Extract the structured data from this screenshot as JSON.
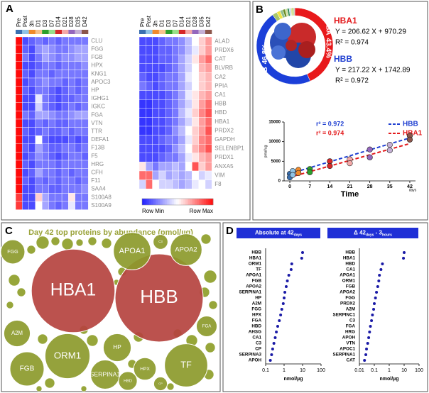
{
  "panel_labels": [
    "A",
    "B",
    "C",
    "D"
  ],
  "chart_data": [
    {
      "type": "heatmap",
      "columns": [
        "Pre",
        "Post",
        "3h",
        "D1",
        "D3",
        "D7",
        "D14",
        "D21",
        "D28",
        "D35",
        "D42"
      ],
      "column_colors": [
        "#3a6fb0",
        "#8fc3e6",
        "#f08a2c",
        "#f7c28c",
        "#2ca02c",
        "#98df8a",
        "#d62728",
        "#f4a9a8",
        "#9467bd",
        "#c5b0d5",
        "#8c564b"
      ],
      "rows": [
        "CLU",
        "FGG",
        "FGB",
        "HPX",
        "KNG1",
        "APOC3",
        "HP",
        "IGHG1",
        "IGKC",
        "FGA",
        "VTN",
        "TTR",
        "DEFA1",
        "F13B",
        "F5",
        "HRG",
        "CFH",
        "F11",
        "SAA4",
        "S100A8",
        "S100A9"
      ],
      "zlim": [
        0,
        1
      ],
      "values": [
        [
          1,
          0.1,
          0.15,
          0.2,
          0.15,
          0.2,
          0.15,
          0.2,
          0.2,
          0.2,
          0.2
        ],
        [
          1,
          0.15,
          0.1,
          0.25,
          0.3,
          0.25,
          0.2,
          0.2,
          0.25,
          0.3,
          0.3
        ],
        [
          1,
          0.2,
          0.1,
          0.2,
          0.3,
          0.25,
          0.2,
          0.25,
          0.25,
          0.3,
          0.3
        ],
        [
          1,
          0.1,
          0.1,
          0.15,
          0.2,
          0.2,
          0.15,
          0.2,
          0.2,
          0.2,
          0.25
        ],
        [
          1,
          0.15,
          0.1,
          0.2,
          0.2,
          0.15,
          0.2,
          0.2,
          0.2,
          0.2,
          0.2
        ],
        [
          1,
          0.1,
          0.15,
          0.2,
          0.25,
          0.2,
          0.2,
          0.15,
          0.2,
          0.15,
          0.2
        ],
        [
          1,
          0.15,
          0.1,
          0.2,
          0.2,
          0.15,
          0.1,
          0.15,
          0.2,
          0.15,
          0.2
        ],
        [
          1,
          0.1,
          0.1,
          0.45,
          0.2,
          0.15,
          0.1,
          0.15,
          0.15,
          0.2,
          0.2
        ],
        [
          1,
          0.1,
          0.1,
          0.4,
          0.2,
          0.15,
          0.1,
          0.15,
          0.2,
          0.15,
          0.2
        ],
        [
          1,
          0.2,
          0.15,
          0.3,
          0.3,
          0.25,
          0.2,
          0.2,
          0.25,
          0.3,
          0.3
        ],
        [
          1,
          0.1,
          0.1,
          0.2,
          0.15,
          0.2,
          0.15,
          0.15,
          0.2,
          0.2,
          0.2
        ],
        [
          1,
          0.15,
          0.1,
          0.15,
          0.2,
          0.15,
          0.15,
          0.2,
          0.15,
          0.2,
          0.2
        ],
        [
          1,
          0.1,
          0.1,
          0.5,
          0.15,
          0.1,
          0.1,
          0.1,
          0.15,
          0.1,
          0.15
        ],
        [
          1,
          0.15,
          0.1,
          0.3,
          0.2,
          0.15,
          0.15,
          0.2,
          0.2,
          0.15,
          0.2
        ],
        [
          1,
          0.1,
          0.15,
          0.25,
          0.2,
          0.15,
          0.1,
          0.15,
          0.2,
          0.2,
          0.15
        ],
        [
          1,
          0.15,
          0.1,
          0.2,
          0.2,
          0.2,
          0.15,
          0.2,
          0.2,
          0.2,
          0.2
        ],
        [
          1,
          0.1,
          0.15,
          0.3,
          0.2,
          0.2,
          0.15,
          0.2,
          0.15,
          0.2,
          0.2
        ],
        [
          1,
          0.15,
          0.1,
          0.2,
          0.15,
          0.2,
          0.15,
          0.2,
          0.2,
          0.15,
          0.2
        ],
        [
          1,
          0.1,
          0.1,
          0.2,
          0.2,
          0.15,
          0.15,
          0.2,
          0.2,
          0.2,
          0.25
        ],
        [
          0.9,
          0.1,
          0.1,
          0.6,
          0.3,
          0.2,
          0.2,
          0.2,
          0.55,
          0.2,
          0.2
        ],
        [
          0.9,
          0.1,
          0.1,
          0.5,
          0.3,
          0.2,
          0.15,
          0.2,
          0.45,
          0.2,
          0.2
        ]
      ]
    },
    {
      "type": "heatmap",
      "columns": [
        "Pre",
        "Post",
        "3h",
        "D1",
        "D3",
        "D7",
        "D14",
        "D21",
        "D28",
        "D35",
        "D42"
      ],
      "column_colors": [
        "#3a6fb0",
        "#8fc3e6",
        "#f08a2c",
        "#f7c28c",
        "#2ca02c",
        "#98df8a",
        "#d62728",
        "#f4a9a8",
        "#9467bd",
        "#c5b0d5",
        "#8c564b"
      ],
      "rows": [
        "ALAD",
        "PRDX6",
        "CAT",
        "BLVRB",
        "CA2",
        "PPIA",
        "CA1",
        "HBB",
        "HBD",
        "HBA1",
        "PRDX2",
        "GAPDH",
        "SELENBP1",
        "PRDX1",
        "ANXA5",
        "VIM",
        "F8"
      ],
      "zlim": [
        0,
        1
      ],
      "colorbar_labels": [
        "Row Min",
        "Row Max"
      ],
      "values": [
        [
          0.1,
          0.1,
          0.1,
          0.15,
          0.2,
          0.2,
          0.25,
          0.35,
          0.5,
          0.6,
          0.7
        ],
        [
          0.1,
          0.1,
          0.1,
          0.15,
          0.15,
          0.2,
          0.25,
          0.35,
          0.45,
          0.6,
          0.7
        ],
        [
          0.1,
          0.1,
          0.1,
          0.15,
          0.15,
          0.2,
          0.3,
          0.4,
          0.55,
          0.7,
          0.8
        ],
        [
          0.1,
          0.1,
          0.1,
          0.1,
          0.15,
          0.2,
          0.3,
          0.4,
          0.5,
          0.65,
          0.7
        ],
        [
          0.15,
          0.1,
          0.1,
          0.15,
          0.2,
          0.2,
          0.3,
          0.45,
          0.5,
          0.6,
          0.65
        ],
        [
          0.2,
          0.15,
          0.1,
          0.15,
          0.2,
          0.2,
          0.3,
          0.4,
          0.5,
          0.6,
          0.65
        ],
        [
          0.1,
          0.1,
          0.1,
          0.1,
          0.15,
          0.2,
          0.3,
          0.45,
          0.55,
          0.65,
          0.7
        ],
        [
          0.05,
          0.05,
          0.1,
          0.1,
          0.15,
          0.2,
          0.3,
          0.4,
          0.55,
          0.7,
          0.8
        ],
        [
          0.05,
          0.05,
          0.1,
          0.1,
          0.15,
          0.2,
          0.35,
          0.45,
          0.6,
          0.75,
          0.85
        ],
        [
          0.05,
          0.05,
          0.1,
          0.1,
          0.15,
          0.2,
          0.3,
          0.4,
          0.55,
          0.7,
          0.8
        ],
        [
          0.05,
          0.05,
          0.1,
          0.1,
          0.15,
          0.25,
          0.35,
          0.5,
          0.6,
          0.7,
          0.85
        ],
        [
          0.1,
          0.1,
          0.1,
          0.15,
          0.2,
          0.2,
          0.3,
          0.45,
          0.6,
          0.75,
          0.8
        ],
        [
          0.1,
          0.1,
          0.1,
          0.1,
          0.15,
          0.25,
          0.35,
          0.5,
          0.65,
          0.75,
          0.85
        ],
        [
          0.1,
          0.1,
          0.1,
          0.15,
          0.2,
          0.2,
          0.3,
          0.45,
          0.55,
          0.65,
          0.7
        ],
        [
          0.55,
          0.3,
          0.2,
          0.3,
          0.3,
          0.35,
          0.3,
          0.5,
          0.85,
          0.6,
          0.7
        ],
        [
          0.8,
          0.8,
          0.3,
          0.4,
          0.3,
          0.35,
          0.3,
          0.35,
          0.5,
          0.4,
          0.45
        ],
        [
          0.4,
          0.8,
          0.5,
          0.4,
          0.4,
          0.35,
          0.3,
          0.35,
          0.45,
          0.5,
          0.4
        ]
      ]
    },
    {
      "type": "pie",
      "categories": [
        "HBA",
        "HBB",
        null,
        null,
        null,
        null,
        null,
        null,
        null,
        null,
        null,
        null
      ],
      "values": [
        43.4,
        46.8,
        2,
        1.5,
        1.2,
        1,
        0.9,
        0.8,
        0.7,
        0.6,
        0.6,
        0.5
      ],
      "value_labels": [
        "43.4%",
        "46.8%",
        null,
        null,
        null,
        null,
        null,
        null,
        null,
        null,
        null,
        null
      ],
      "colors": [
        "#e8191b",
        "#1b3fd9",
        "#a8c66c",
        "#f0e442",
        "#8fbf8f",
        "#6b8e23",
        "#cfe0a0",
        "#2e8b57",
        "#b8d8e8",
        "#e0e0a0",
        "#9acd32",
        "#c0c0c0"
      ],
      "annotations": [
        {
          "text": "HBA1",
          "color": "#e31a1c"
        },
        {
          "text": "Y = 206.62 X + 970.29",
          "color": "#000000"
        },
        {
          "text": "R² = 0.974",
          "color": "#000000"
        },
        {
          "text": "HBB",
          "color": "#1f3fd1"
        },
        {
          "text": "Y = 217.22 X + 1742.89",
          "color": "#000000"
        },
        {
          "text": "R² = 0.972",
          "color": "#000000"
        }
      ]
    },
    {
      "type": "scatter",
      "x": [
        0,
        1,
        3,
        7,
        14,
        21,
        28,
        35,
        42
      ],
      "point_colors": [
        "#3a6fb0",
        "#8fc3e6",
        "#f08a2c",
        "#2ca02c",
        "#d62728",
        "#f4a9a8",
        "#9467bd",
        "#c5b0d5",
        "#8c564b"
      ],
      "series": [
        {
          "name": "HBB",
          "color": "#1f3fd1",
          "values": [
            1800,
            2500,
            2800,
            3000,
            5000,
            5500,
            8000,
            9200,
            11500
          ]
        },
        {
          "name": "HBA1",
          "color": "#e31a1c",
          "values": [
            900,
            1500,
            2000,
            2200,
            3800,
            4500,
            6000,
            7800,
            10500
          ]
        }
      ],
      "xlim": [
        -2,
        44
      ],
      "ylim": [
        0,
        15000
      ],
      "xticks": [
        0,
        7,
        14,
        21,
        28,
        35,
        42
      ],
      "yticks": [
        0,
        5000,
        10000,
        15000
      ],
      "xlabel": "Time",
      "xunit": "days",
      "ylabel": "pmol/ug",
      "trendline": true,
      "annotations": [
        {
          "text": "r² = 0.972",
          "color": "#1f3fd1"
        },
        {
          "text": "r² = 0.974",
          "color": "#e31a1c"
        }
      ]
    },
    {
      "type": "bubble",
      "title": "Day 42 top proteins by abundance (pmol/µg)",
      "categories": [
        "HBB",
        "HBA1",
        "TF",
        "ORM1",
        "HP",
        "FGB",
        "A2M",
        "APOA1",
        "APOA2",
        "SERPINA1",
        "FGG",
        "C3",
        "HPX",
        "CP",
        "HBD",
        "FGA"
      ],
      "values": [
        10,
        9,
        2.4,
        2.6,
        1,
        1.5,
        0.9,
        1.8,
        1.3,
        1.1,
        0.75,
        0.28,
        0.65,
        0.24,
        0.45,
        0.55
      ],
      "colors": [
        "#b5433f",
        "#b5433f",
        "#8c9a2b",
        "#8c9a2b",
        "#8c9a2b",
        "#8c9a2b",
        "#8c9a2b",
        "#8c9a2b",
        "#8c9a2b",
        "#8c9a2b",
        "#8c9a2b",
        "#8c9a2b",
        "#8c9a2b",
        "#8c9a2b",
        "#8c9a2b",
        "#8c9a2b"
      ]
    },
    {
      "type": "dot",
      "title_parts": [
        "Absolute at 42",
        "days"
      ],
      "categories": [
        "HBB",
        "HBA1",
        "ORM1",
        "TF",
        "APOA1",
        "FGB",
        "APOA2",
        "SERPINA1",
        "HP",
        "A2M",
        "FGG",
        "HPX",
        "FGA",
        "HBD",
        "AHSG",
        "CA1",
        "C3",
        "CP",
        "SERPINA3",
        "APOH"
      ],
      "values": [
        10,
        9,
        2.6,
        2.4,
        1.8,
        1.5,
        1.3,
        1.1,
        1,
        0.9,
        0.75,
        0.65,
        0.55,
        0.45,
        0.38,
        0.33,
        0.28,
        0.24,
        0.21,
        0.18
      ],
      "log_x": true,
      "xlim": [
        0.1,
        100
      ],
      "xticks": [
        0.1,
        1,
        10,
        100
      ],
      "xlabel": "nmol/µg",
      "color": "#1a1aa6",
      "title_color": "#1f2fd6"
    },
    {
      "type": "dot",
      "title_parts": [
        "Δ 42",
        "days",
        " - 3",
        "hours"
      ],
      "categories": [
        "HBB",
        "HBA1",
        "HBD",
        "CA1",
        "APOA1",
        "ORM1",
        "FGB",
        "APOA2",
        "FGG",
        "PRDX2",
        "A2M",
        "SERPINC1",
        "C3",
        "FGA",
        "HRG",
        "APOH",
        "VTN",
        "APOC1",
        "SERPINA1",
        "CAT"
      ],
      "values": [
        10,
        9,
        0.35,
        0.28,
        0.22,
        0.2,
        0.17,
        0.14,
        0.12,
        0.1,
        0.09,
        0.075,
        0.065,
        0.055,
        0.048,
        0.042,
        0.036,
        0.03,
        0.027,
        0.022
      ],
      "log_x": true,
      "xlim": [
        0.01,
        100
      ],
      "xticks": [
        0.01,
        0.1,
        1,
        10,
        100
      ],
      "xlabel": "nmol/µg",
      "color": "#1a1aa6",
      "title_color": "#1f2fd6"
    }
  ]
}
